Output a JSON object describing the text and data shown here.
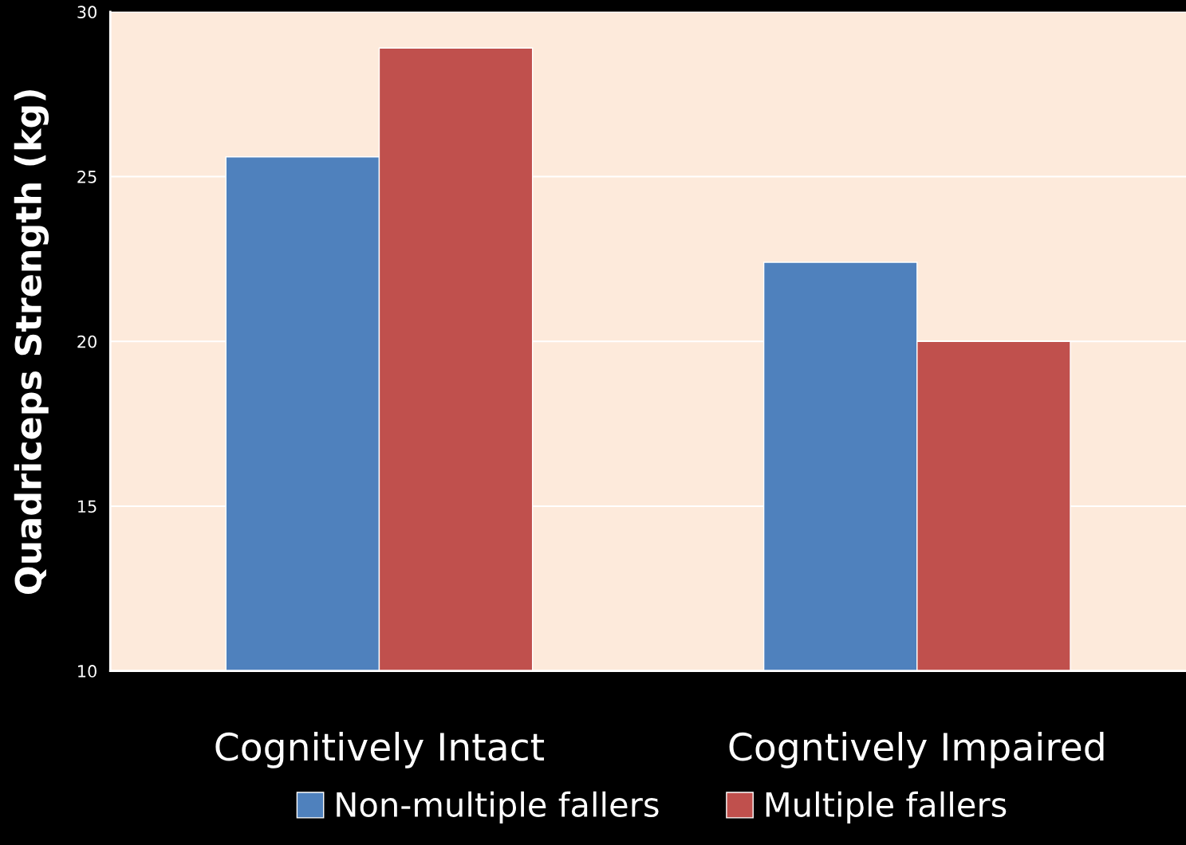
{
  "chart_data": {
    "type": "bar",
    "ylabel": "Quadriceps Strength (kg)",
    "categories": [
      "Cognitively Intact",
      "Cogntively Impaired"
    ],
    "series": [
      {
        "name": "Non-multiple fallers",
        "color": "#4f81bd",
        "values": [
          25.6,
          22.4
        ]
      },
      {
        "name": "Multiple fallers",
        "color": "#c0504d",
        "values": [
          28.9,
          20.0
        ]
      }
    ],
    "ylim": [
      10,
      30
    ],
    "yticks": [
      10,
      15,
      20,
      25,
      30
    ],
    "grid": "y",
    "legend": "bottom"
  }
}
